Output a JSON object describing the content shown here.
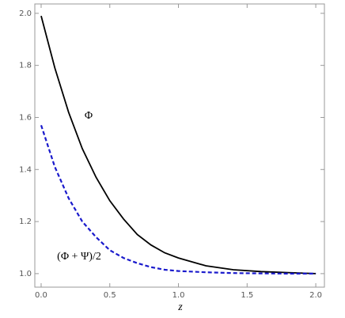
{
  "chart_data": {
    "type": "line",
    "xlabel": "z",
    "x": [
      0,
      0.1,
      0.2,
      0.3,
      0.4,
      0.5,
      0.6,
      0.7,
      0.8,
      0.9,
      1.0,
      1.2,
      1.4,
      1.6,
      1.8,
      2.0
    ],
    "series": [
      {
        "name": "Φ",
        "color": "#000000",
        "style": "solid",
        "values": [
          1.99,
          1.79,
          1.62,
          1.48,
          1.37,
          1.28,
          1.21,
          1.15,
          1.11,
          1.08,
          1.06,
          1.03,
          1.015,
          1.008,
          1.004,
          1.0
        ]
      },
      {
        "name": "(Φ + Ψ)/2",
        "color": "#1a1acc",
        "style": "dashed",
        "values": [
          1.57,
          1.41,
          1.29,
          1.2,
          1.14,
          1.09,
          1.06,
          1.04,
          1.025,
          1.015,
          1.01,
          1.005,
          1.002,
          1.001,
          1.0,
          1.0
        ]
      }
    ],
    "xlim": [
      -0.046,
      2.063
    ],
    "xticks": [
      {
        "value": 0,
        "label": "0.0"
      },
      0.5,
      {
        "value": 1,
        "label": "1.0"
      },
      1.5,
      {
        "value": 2,
        "label": "2.0"
      }
    ],
    "ylim": [
      0.948,
      2.036
    ],
    "yticks": [
      {
        "value": 1,
        "label": "1.0"
      },
      1.2,
      1.4,
      1.6,
      1.8,
      {
        "value": 2,
        "label": "2.0"
      }
    ],
    "grid": false
  }
}
